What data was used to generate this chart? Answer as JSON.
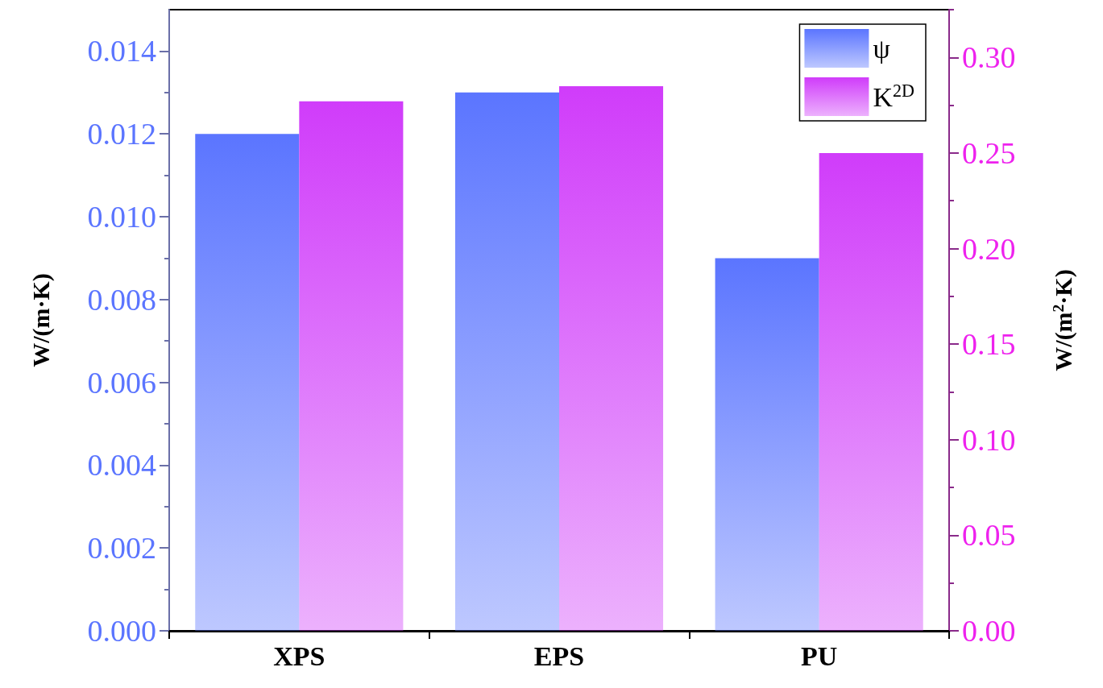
{
  "chart_data": {
    "type": "bar",
    "categories": [
      "XPS",
      "EPS",
      "PU"
    ],
    "ylabel": "W/(m·K)",
    "y2label": "W/(m$^{2}$·K)",
    "series": [
      {
        "name": "ψ",
        "color": "#5b75ff",
        "values": [
          0.012,
          0.013,
          0.009
        ]
      },
      {
        "name": "K$^{2D}$",
        "color": "#d03cfa",
        "values": [
          0.277,
          0.285,
          0.25
        ],
        "axis": "y2"
      }
    ],
    "ylim": [
      0,
      0.015
    ],
    "yticks": [
      {
        "value": 0,
        "label": "0.000"
      },
      0.002,
      0.004,
      0.006,
      0.008,
      {
        "value": 0.01,
        "label": "0.010"
      },
      0.012,
      0.014
    ],
    "y2lim": [
      0,
      0.325
    ],
    "y2ticks": [
      {
        "value": 0,
        "label": "0.00"
      },
      0.05,
      {
        "value": 0.1,
        "label": "0.10"
      },
      0.15,
      {
        "value": 0.2,
        "label": "0.20"
      },
      0.25,
      {
        "value": 0.3,
        "label": "0.30"
      }
    ],
    "legend": "top right",
    "grid": false
  }
}
